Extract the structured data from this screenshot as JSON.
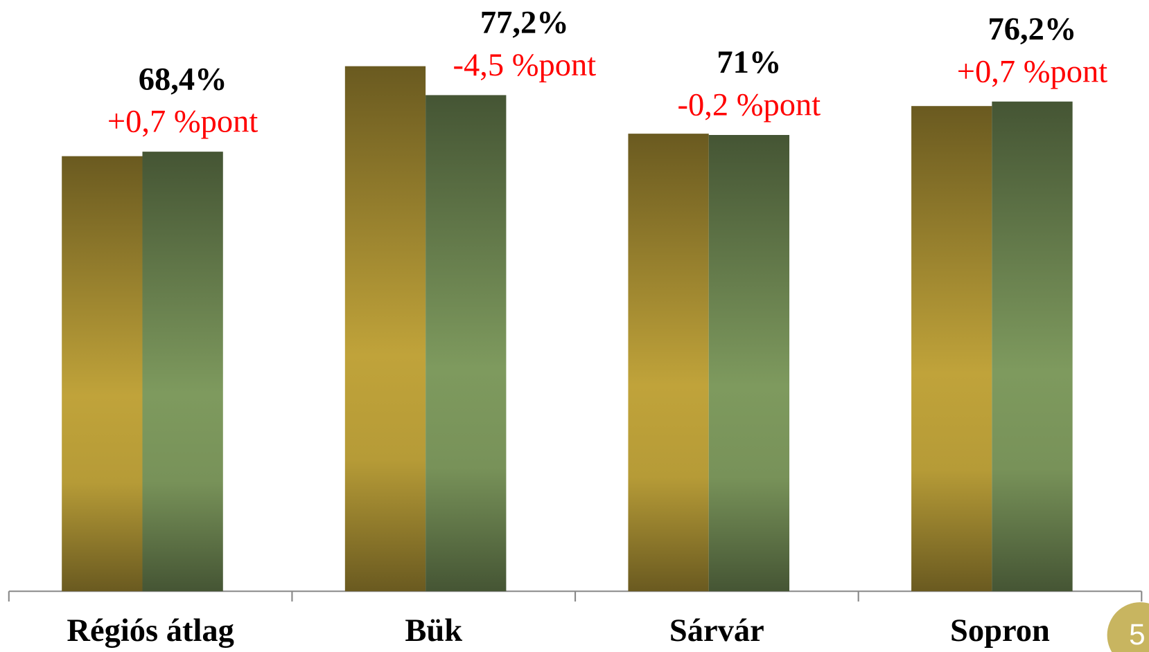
{
  "chart_data": {
    "type": "bar",
    "categories": [
      "Régiós átlag",
      "Bük",
      "Sárvár",
      "Sopron"
    ],
    "series": [
      {
        "color": "#c0a33a",
        "values": [
          67.7,
          81.7,
          71.2,
          75.5
        ]
      },
      {
        "color": "#7e9a5e",
        "values": [
          68.4,
          77.2,
          71,
          76.2
        ],
        "value_labels": [
          "68,4%",
          "77,2%",
          "71%",
          "76,2%"
        ]
      }
    ],
    "annotations": [
      "+0,7 %pont",
      "-4,5 %pont",
      "-0,2 %pont",
      "+0,7 %pont"
    ],
    "ylim": [
      0,
      92
    ]
  },
  "page_number": "5"
}
